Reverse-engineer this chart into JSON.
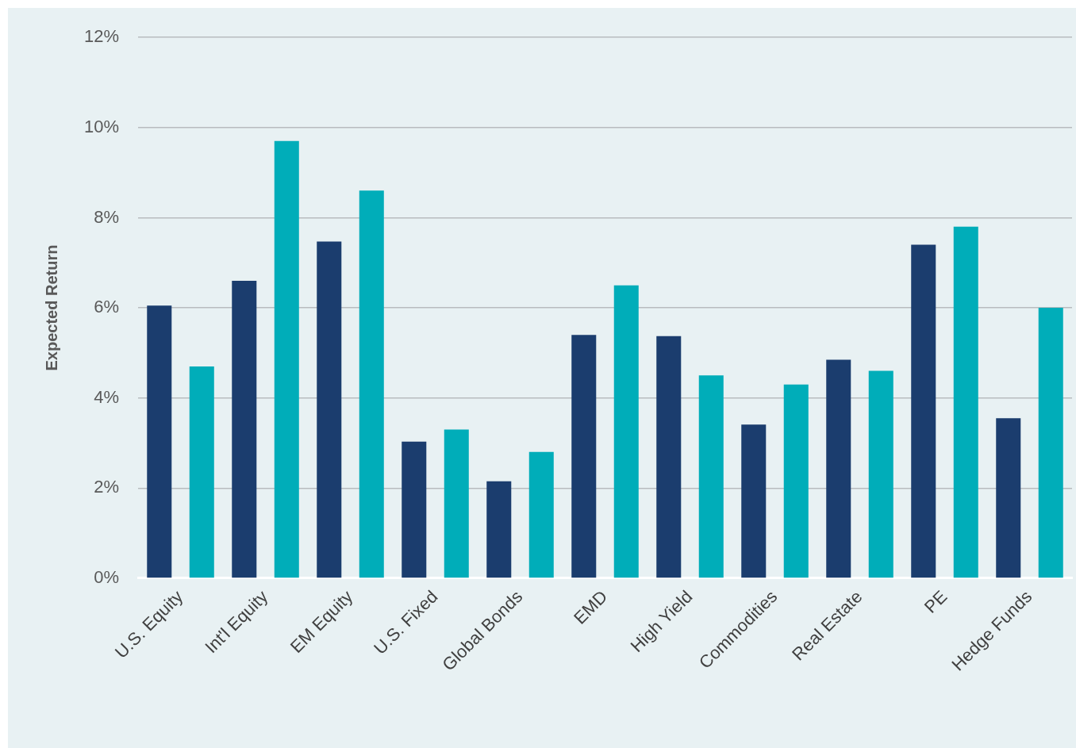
{
  "chart_data": {
    "type": "bar",
    "ylabel": "Expected Return",
    "categories": [
      "U.S. Equity",
      "Int'l Equity",
      "EM Equity",
      "U.S. Fixed",
      "Global Bonds",
      "EMD",
      "High Yield",
      "Commodities",
      "Real Estate",
      "PE",
      "Hedge Funds"
    ],
    "series": [
      {
        "color": "#1b3d6e",
        "values": [
          6.05,
          6.6,
          7.47,
          3.03,
          2.15,
          5.4,
          5.37,
          3.41,
          4.85,
          7.4,
          3.55
        ]
      },
      {
        "color": "#00adb9",
        "values": [
          4.7,
          9.7,
          8.6,
          3.3,
          2.8,
          6.5,
          4.5,
          4.3,
          4.6,
          7.8,
          6.0
        ]
      }
    ],
    "ylim": [
      0,
      12
    ],
    "yticks": [
      {
        "value": 0,
        "label": "0%"
      },
      {
        "value": 2,
        "label": "2%"
      },
      {
        "value": 4,
        "label": "4%"
      },
      {
        "value": 6,
        "label": "6%"
      },
      {
        "value": 8,
        "label": "8%"
      },
      {
        "value": 10,
        "label": "10%"
      },
      {
        "value": 12,
        "label": "12%"
      }
    ],
    "grid": "y"
  }
}
